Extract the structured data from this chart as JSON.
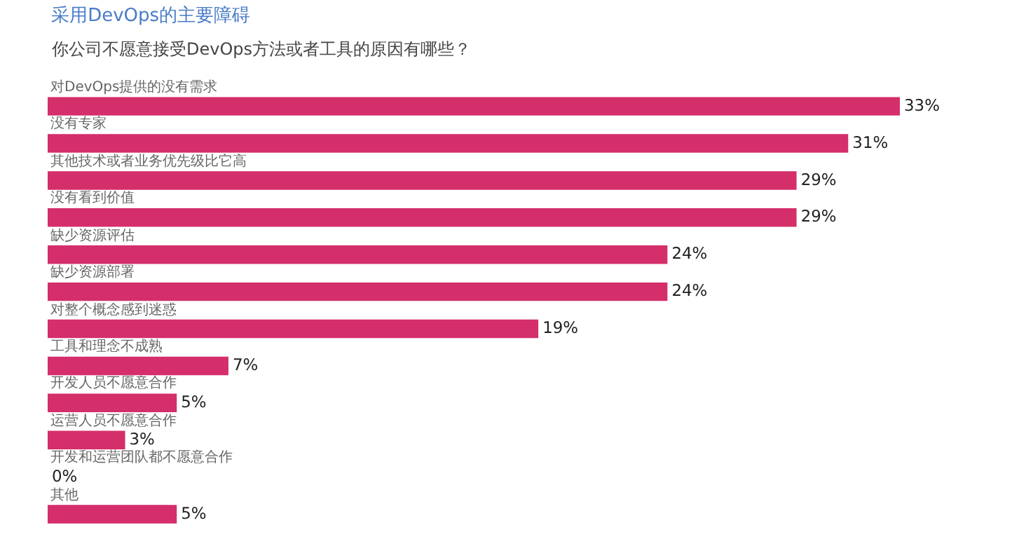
{
  "chart_data": {
    "type": "bar",
    "orientation": "horizontal",
    "title": "采用DevOps的主要障碍",
    "subtitle": "你公司不愿意接受DevOps方法或者工具的原因有哪些？",
    "categories": [
      "对DevOps提供的没有需求",
      "没有专家",
      "其他技术或者业务优先级比它高",
      "没有看到价值",
      "缺少资源评估",
      "缺少资源部署",
      "对整个概念感到迷惑",
      "工具和理念不成熟",
      "开发人员不愿意合作",
      "运营人员不愿意合作",
      "开发和运营团队都不愿意合作",
      "其他"
    ],
    "values": [
      33,
      31,
      29,
      29,
      24,
      24,
      19,
      7,
      5,
      3,
      0,
      5
    ],
    "value_labels": [
      "33%",
      "31%",
      "29%",
      "29%",
      "24%",
      "24%",
      "19%",
      "7%",
      "5%",
      "3%",
      "0%",
      "5%"
    ],
    "color": "#d42e6b"
  }
}
